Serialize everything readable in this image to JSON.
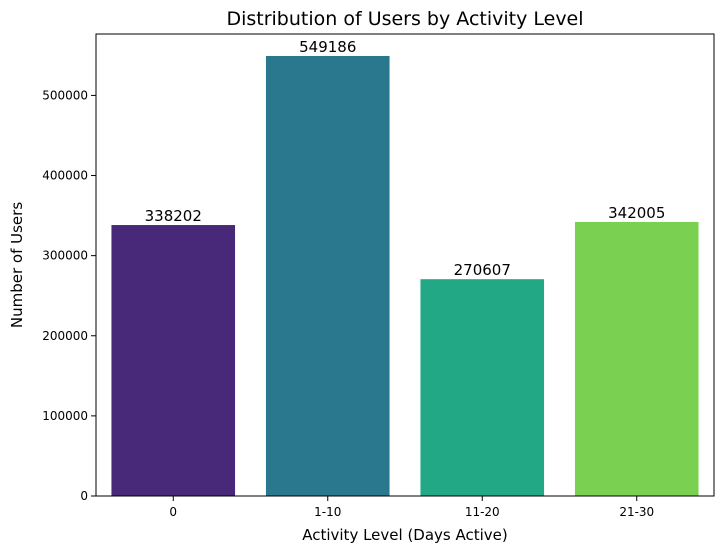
{
  "chart_data": {
    "type": "bar",
    "title": "Distribution of Users by Activity Level",
    "xlabel": "Activity Level (Days Active)",
    "ylabel": "Number of Users",
    "categories": [
      "0",
      "1-10",
      "11-20",
      "21-30"
    ],
    "values": [
      338202,
      549186,
      270607,
      342005
    ],
    "data_labels": [
      "338202",
      "549186",
      "270607",
      "342005"
    ],
    "colors": [
      "#482878",
      "#2a788e",
      "#22a884",
      "#7ad151"
    ],
    "ylim": [
      0,
      576645
    ],
    "yticks": [
      0,
      100000,
      200000,
      300000,
      400000,
      500000
    ],
    "ytick_labels": [
      "0",
      "100000",
      "200000",
      "300000",
      "400000",
      "500000"
    ],
    "grid": false,
    "legend": "none"
  }
}
